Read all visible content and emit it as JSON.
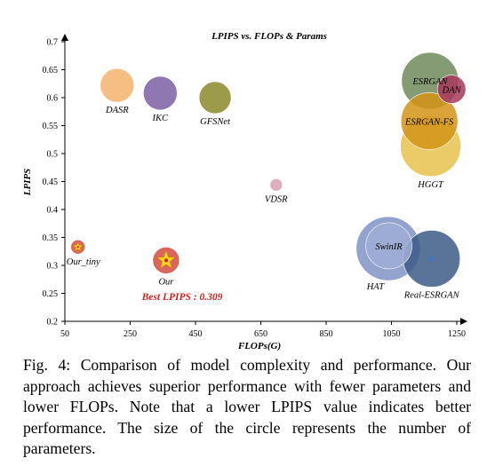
{
  "chart_data": {
    "type": "scatter",
    "title": "LPIPS vs. FLOPs & Params",
    "xlabel": "FLOPs(G)",
    "ylabel": "LPIPS",
    "xlim": [
      50,
      1250
    ],
    "ylim": [
      0.2,
      0.7
    ],
    "xticks": [
      50,
      250,
      450,
      650,
      850,
      1050,
      1250
    ],
    "yticks": [
      0.2,
      0.25,
      0.3,
      0.35,
      0.4,
      0.45,
      0.5,
      0.55,
      0.6,
      0.65,
      0.7
    ],
    "points": [
      {
        "name": "DASR",
        "x": 210,
        "y": 0.622,
        "size": 19,
        "color": "#f5b36b",
        "label_pos": "below"
      },
      {
        "name": "IKC",
        "x": 342,
        "y": 0.608,
        "size": 19,
        "color": "#7b5fa3",
        "label_pos": "below"
      },
      {
        "name": "GFSNet",
        "x": 510,
        "y": 0.6,
        "size": 18,
        "color": "#8a8a2a",
        "label_pos": "below"
      },
      {
        "name": "VDSR",
        "x": 697,
        "y": 0.444,
        "size": 7,
        "color": "#d9a0b3",
        "label_pos": "below"
      },
      {
        "name": "Our_tiny",
        "x": 90,
        "y": 0.333,
        "size": 8,
        "color": "#d44a3f",
        "label_pos": "below"
      },
      {
        "name": "Our",
        "x": 360,
        "y": 0.309,
        "size": 15,
        "color": "#d44a3f",
        "label_pos": "below"
      },
      {
        "name": "ESRGAN",
        "x": 1168,
        "y": 0.63,
        "size": 32,
        "color": "#6e8a5c",
        "label_pos": "inside"
      },
      {
        "name": "DAN",
        "x": 1234,
        "y": 0.615,
        "size": 16,
        "color": "#a8385c",
        "label_pos": "inside"
      },
      {
        "name": "ESRGAN-FS",
        "x": 1166,
        "y": 0.558,
        "size": 32,
        "color": "#d49418",
        "label_pos": "inside"
      },
      {
        "name": "HGGT",
        "x": 1170,
        "y": 0.513,
        "size": 34,
        "color": "#e8c24c",
        "label_pos": "below"
      },
      {
        "name": "SwinIR",
        "x": 1042,
        "y": 0.335,
        "size": 26,
        "color": "#9faed6",
        "label_pos": "inside"
      },
      {
        "name": "HAT",
        "x": 1040,
        "y": 0.33,
        "size": 36,
        "color": "#7f93c4",
        "label_pos": "below-left"
      },
      {
        "name": "Real-ESRGAN",
        "x": 1173,
        "y": 0.312,
        "size": 32,
        "color": "#3d5a86",
        "label_pos": "below"
      }
    ],
    "annotation": "Best LPIPS : 0.309",
    "grid": false,
    "legend": "none"
  },
  "caption": "Fig. 4: Comparison of model complexity and performance. Our approach achieves superior performance with fewer parameters and lower FLOPs. Note that a lower LPIPS value indicates better performance. The size of the circle represents the number of parameters."
}
